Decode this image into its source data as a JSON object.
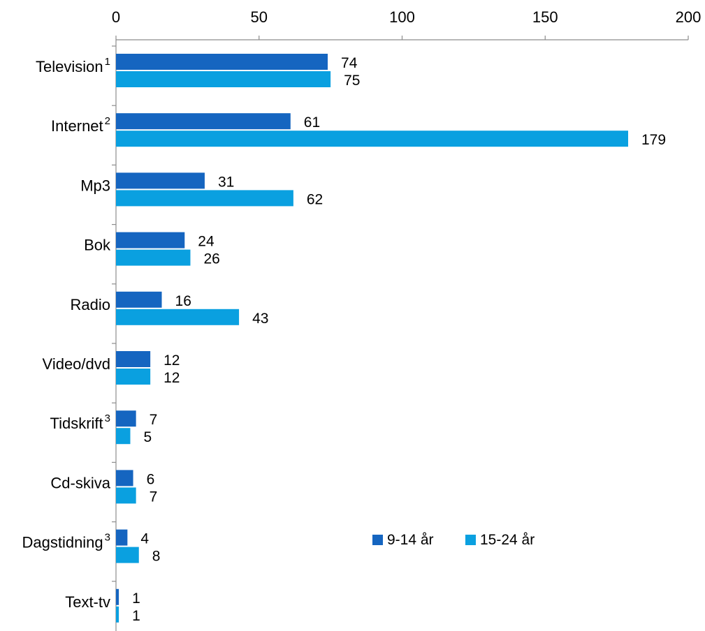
{
  "chart_data": {
    "type": "bar",
    "orientation": "horizontal",
    "categories": [
      {
        "label": "Television",
        "sup": "1"
      },
      {
        "label": "Internet",
        "sup": "2"
      },
      {
        "label": "Mp3",
        "sup": ""
      },
      {
        "label": "Bok",
        "sup": ""
      },
      {
        "label": "Radio",
        "sup": ""
      },
      {
        "label": "Video/dvd",
        "sup": ""
      },
      {
        "label": "Tidskrift",
        "sup": "3"
      },
      {
        "label": "Cd-skiva",
        "sup": ""
      },
      {
        "label": "Dagstidning",
        "sup": "3"
      },
      {
        "label": "Text-tv",
        "sup": ""
      }
    ],
    "series": [
      {
        "name": "9-14 år",
        "color": "#1565C0",
        "values": [
          74,
          61,
          31,
          24,
          16,
          12,
          7,
          6,
          4,
          1
        ]
      },
      {
        "name": "15-24 år",
        "color": "#0AA0E0",
        "values": [
          75,
          179,
          62,
          26,
          43,
          12,
          5,
          7,
          8,
          1
        ]
      }
    ],
    "xlim": [
      0,
      200
    ],
    "xticks": [
      0,
      50,
      100,
      150,
      200
    ],
    "axis_position": "top",
    "grid": false,
    "legend_position": "bottom-right",
    "title": "",
    "xlabel": "",
    "ylabel": ""
  }
}
